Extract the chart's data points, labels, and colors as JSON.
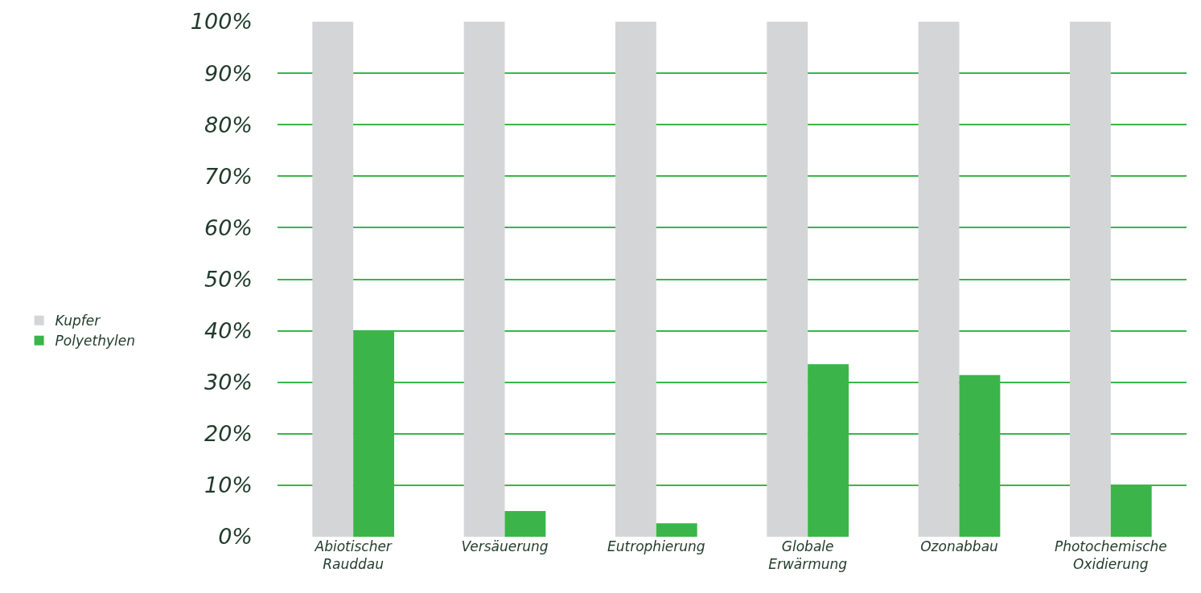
{
  "chart_data": {
    "type": "bar",
    "categories": [
      "Abiotischer Rauddau",
      "Versäuerung",
      "Eutrophierung",
      "Globale Erwärmung",
      "Ozonabbau",
      "Photochemische Oxidierung"
    ],
    "series": [
      {
        "name": "Kupfer",
        "color": "#d4d5d7",
        "values": [
          100,
          100,
          100,
          100,
          100,
          100
        ]
      },
      {
        "name": "Polyethylen",
        "color": "#3bb54a",
        "values": [
          40,
          5,
          2.6,
          33.5,
          31.4,
          10
        ]
      }
    ],
    "ylim": [
      0,
      100
    ],
    "yticks": [
      {
        "value": 0,
        "label": "0%"
      },
      {
        "value": 10,
        "label": "10%"
      },
      {
        "value": 20,
        "label": "20%"
      },
      {
        "value": 30,
        "label": "30%"
      },
      {
        "value": 40,
        "label": "40%"
      },
      {
        "value": 50,
        "label": "50%"
      },
      {
        "value": 60,
        "label": "60%"
      },
      {
        "value": 70,
        "label": "70%"
      },
      {
        "value": 80,
        "label": "80%"
      },
      {
        "value": 90,
        "label": "90%"
      },
      {
        "value": 100,
        "label": "100%"
      }
    ],
    "grid": "y",
    "legend": "left"
  }
}
